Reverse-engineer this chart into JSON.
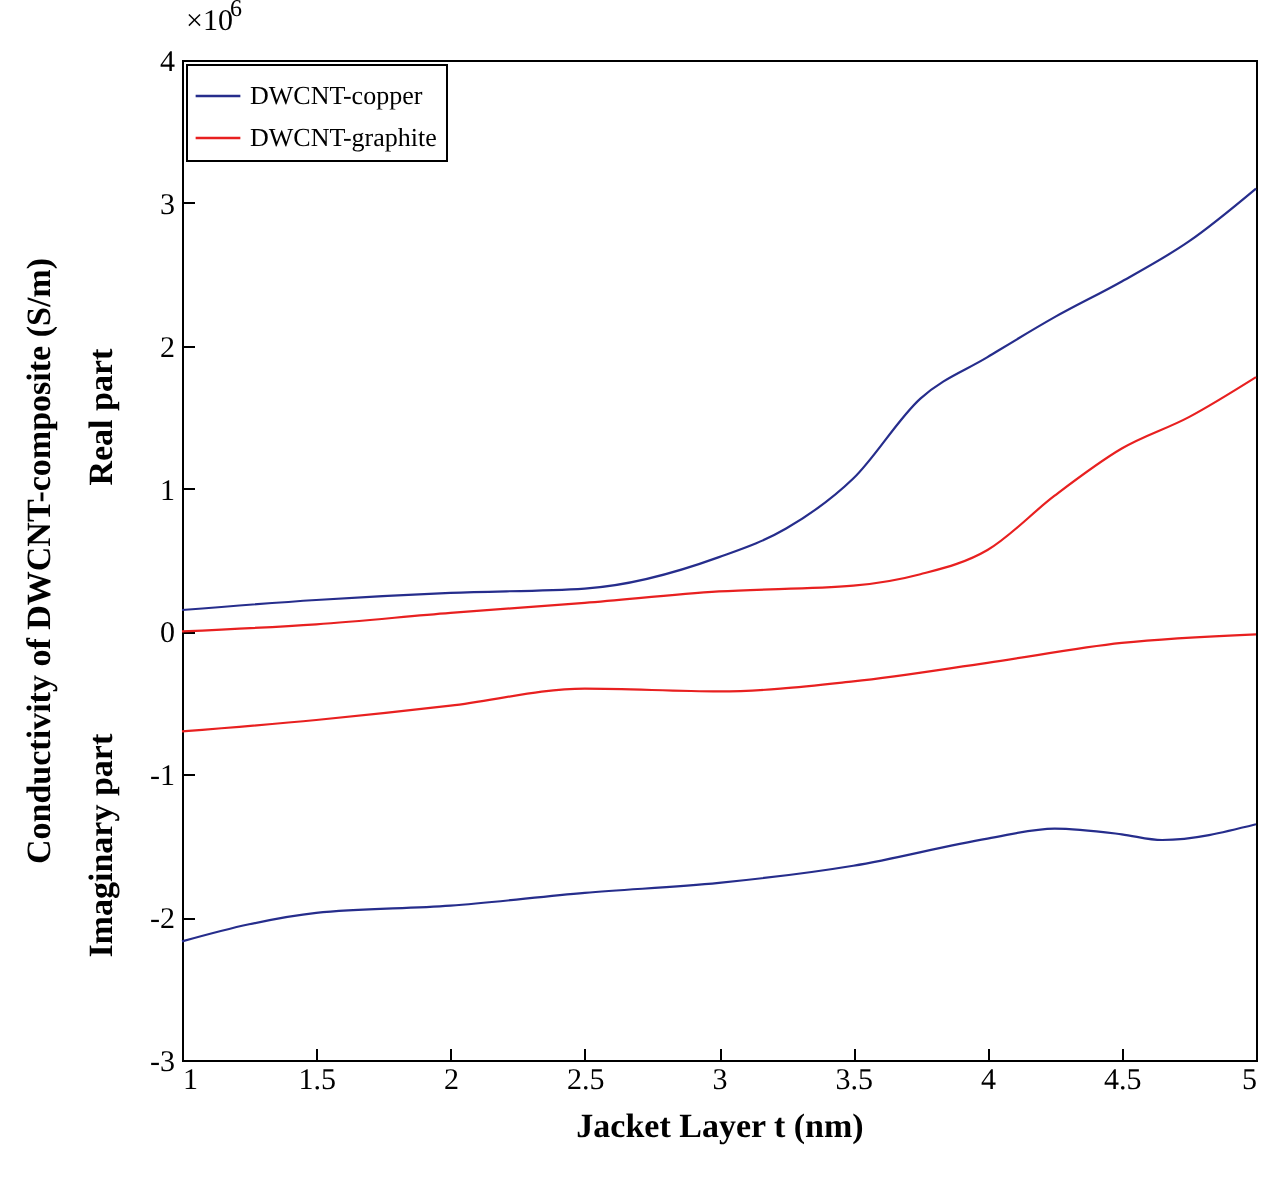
{
  "chart_data": {
    "type": "line",
    "xlabel": "Jacket Layer t (nm)",
    "ylabel": "Conductivity of DWCNT-composite (S/m)",
    "annotations": [
      "×10$^{6}$",
      "Real part",
      "Imaginary part"
    ],
    "xlim": [
      1,
      5
    ],
    "xticks": [
      1,
      1.5,
      2,
      2.5,
      3,
      3.5,
      4,
      4.5,
      5
    ],
    "ylim": [
      -3,
      4
    ],
    "yticks": [
      -3,
      -2,
      -1,
      0,
      1,
      2,
      3,
      4
    ],
    "grid": false,
    "legend": "top left",
    "line_style": "solid",
    "marker": "none",
    "series": [
      {
        "name": "DWCNT-copper",
        "color": "#262d8c",
        "x": [
          1,
          1.5,
          2,
          2.5,
          3,
          3.25,
          3.5,
          3.75,
          4,
          4.25,
          4.5,
          4.75,
          5
        ],
        "values": [
          0.15,
          0.22,
          0.27,
          0.3,
          0.52,
          0.72,
          1.07,
          1.63,
          1.92,
          2.2,
          2.45,
          2.73,
          3.1
        ]
      },
      {
        "name": "DWCNT-graphite",
        "color": "#e82020",
        "x": [
          1,
          1.5,
          2,
          2.5,
          3,
          3.5,
          3.75,
          4,
          4.25,
          4.5,
          4.75,
          5
        ],
        "values": [
          0.0,
          0.05,
          0.13,
          0.2,
          0.28,
          0.32,
          0.4,
          0.57,
          0.95,
          1.28,
          1.5,
          1.78
        ]
      },
      {
        "color": "#e82020",
        "x": [
          1,
          1.5,
          2,
          2.5,
          3,
          3.5,
          4,
          4.5,
          5
        ],
        "values": [
          -0.7,
          -0.62,
          -0.52,
          -0.4,
          -0.42,
          -0.35,
          -0.22,
          -0.08,
          -0.02
        ]
      },
      {
        "color": "#262d8c",
        "x": [
          1,
          1.25,
          1.5,
          2,
          2.5,
          3,
          3.5,
          4,
          4.25,
          4.5,
          4.65,
          5
        ],
        "values": [
          -2.17,
          -2.05,
          -1.97,
          -1.92,
          -1.83,
          -1.76,
          -1.64,
          -1.45,
          -1.38,
          -1.42,
          -1.46,
          -1.35
        ]
      }
    ]
  }
}
